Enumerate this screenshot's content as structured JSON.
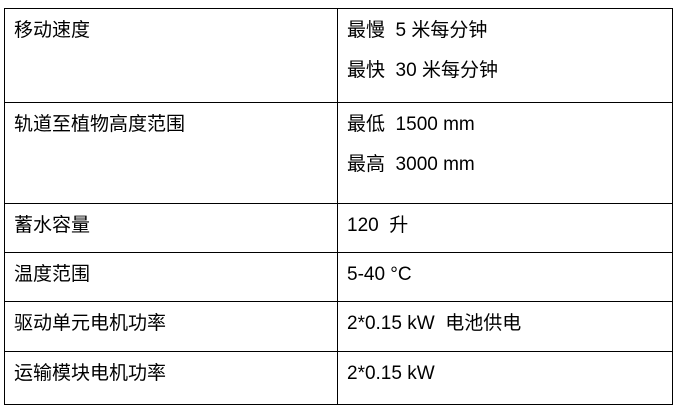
{
  "table": {
    "background": "#ffffff",
    "border_color": "#000000",
    "text_color": "#000000",
    "rows": [
      {
        "label": "移动速度",
        "values": [
          "最慢  5 米每分钟",
          "最快  30 米每分钟"
        ]
      },
      {
        "label": "轨道至植物高度范围",
        "values": [
          "最低  1500 mm",
          "最高  3000 mm"
        ]
      },
      {
        "label": "蓄水容量",
        "values": [
          "120  升"
        ]
      },
      {
        "label": "温度范围",
        "values": [
          "5-40 °C"
        ]
      },
      {
        "label": "驱动单元电机功率",
        "values": [
          "2*0.15 kW  电池供电"
        ]
      },
      {
        "label": "运输模块电机功率",
        "values": [
          "2*0.15 kW"
        ]
      }
    ]
  }
}
